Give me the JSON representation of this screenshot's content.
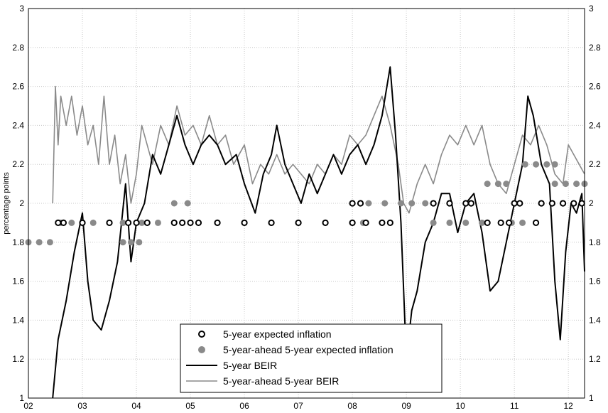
{
  "chart_data": {
    "type": "line",
    "title": "",
    "xlabel": "",
    "ylabel": "percentage points",
    "xlim": [
      2002.0,
      2012.3
    ],
    "ylim": [
      1.0,
      3.0
    ],
    "grid": true,
    "x_ticks": [
      "02",
      "03",
      "04",
      "05",
      "06",
      "07",
      "08",
      "09",
      "10",
      "11",
      "12"
    ],
    "y_ticks": [
      "1",
      "1.2",
      "1.4",
      "1.6",
      "1.8",
      "2",
      "2.2",
      "2.4",
      "2.6",
      "2.8",
      "3"
    ],
    "legend_position": "bottom-center",
    "colors": {
      "expected": "#000000",
      "ahead_expected": "#8a8a8a",
      "beir": "#000000",
      "ahead_beir": "#8a8a8a",
      "grid": "#c8c8c8"
    },
    "series": [
      {
        "name": "5-year expected inflation",
        "style": "markers",
        "points": [
          [
            2002.55,
            1.9
          ],
          [
            2002.65,
            1.9
          ],
          [
            2003.0,
            1.9
          ],
          [
            2003.5,
            1.9
          ],
          [
            2003.85,
            1.9
          ],
          [
            2004.0,
            1.9
          ],
          [
            2004.2,
            1.9
          ],
          [
            2004.7,
            1.9
          ],
          [
            2004.85,
            1.9
          ],
          [
            2005.0,
            1.9
          ],
          [
            2005.15,
            1.9
          ],
          [
            2005.5,
            1.9
          ],
          [
            2006.0,
            1.9
          ],
          [
            2006.5,
            1.9
          ],
          [
            2007.0,
            1.9
          ],
          [
            2007.5,
            1.9
          ],
          [
            2008.0,
            1.9
          ],
          [
            2008.25,
            1.9
          ],
          [
            2008.0,
            2.0
          ],
          [
            2008.15,
            2.0
          ],
          [
            2008.55,
            1.9
          ],
          [
            2008.7,
            1.9
          ],
          [
            2009.5,
            2.0
          ],
          [
            2009.8,
            2.0
          ],
          [
            2010.1,
            2.0
          ],
          [
            2010.2,
            2.0
          ],
          [
            2010.5,
            1.9
          ],
          [
            2010.75,
            1.9
          ],
          [
            2010.9,
            1.9
          ],
          [
            2011.0,
            2.0
          ],
          [
            2011.1,
            2.0
          ],
          [
            2011.4,
            1.9
          ],
          [
            2011.5,
            2.0
          ],
          [
            2011.7,
            2.0
          ],
          [
            2011.9,
            2.0
          ],
          [
            2012.1,
            2.0
          ],
          [
            2012.25,
            2.0
          ]
        ]
      },
      {
        "name": "5-year-ahead 5-year expected inflation",
        "style": "markers",
        "points": [
          [
            2002.0,
            1.8
          ],
          [
            2002.2,
            1.8
          ],
          [
            2002.4,
            1.8
          ],
          [
            2002.6,
            1.9
          ],
          [
            2002.8,
            1.9
          ],
          [
            2003.0,
            1.9
          ],
          [
            2003.2,
            1.9
          ],
          [
            2003.5,
            1.9
          ],
          [
            2003.75,
            1.9
          ],
          [
            2003.75,
            1.8
          ],
          [
            2003.9,
            1.8
          ],
          [
            2004.05,
            1.8
          ],
          [
            2004.1,
            1.9
          ],
          [
            2004.4,
            1.9
          ],
          [
            2004.7,
            1.9
          ],
          [
            2004.7,
            2.0
          ],
          [
            2004.95,
            2.0
          ],
          [
            2005.0,
            1.9
          ],
          [
            2005.5,
            1.9
          ],
          [
            2006.0,
            1.9
          ],
          [
            2006.5,
            1.9
          ],
          [
            2007.0,
            1.9
          ],
          [
            2007.5,
            1.9
          ],
          [
            2008.0,
            1.9
          ],
          [
            2008.2,
            1.9
          ],
          [
            2008.3,
            2.0
          ],
          [
            2008.6,
            2.0
          ],
          [
            2008.9,
            2.0
          ],
          [
            2009.1,
            2.0
          ],
          [
            2009.35,
            2.0
          ],
          [
            2009.5,
            1.9
          ],
          [
            2009.8,
            1.9
          ],
          [
            2010.1,
            1.9
          ],
          [
            2010.4,
            1.9
          ],
          [
            2010.5,
            2.1
          ],
          [
            2010.7,
            2.1
          ],
          [
            2010.85,
            2.1
          ],
          [
            2010.95,
            1.9
          ],
          [
            2011.15,
            1.9
          ],
          [
            2011.2,
            2.2
          ],
          [
            2011.4,
            2.2
          ],
          [
            2011.6,
            2.2
          ],
          [
            2011.75,
            2.2
          ],
          [
            2011.75,
            2.1
          ],
          [
            2011.95,
            2.1
          ],
          [
            2012.15,
            2.1
          ],
          [
            2012.3,
            2.1
          ]
        ]
      },
      {
        "name": "5-year BEIR",
        "style": "line",
        "points": [
          [
            2002.45,
            1.0
          ],
          [
            2002.55,
            1.3
          ],
          [
            2002.7,
            1.5
          ],
          [
            2002.85,
            1.75
          ],
          [
            2003.0,
            1.95
          ],
          [
            2003.1,
            1.6
          ],
          [
            2003.2,
            1.4
          ],
          [
            2003.35,
            1.35
          ],
          [
            2003.5,
            1.5
          ],
          [
            2003.65,
            1.7
          ],
          [
            2003.8,
            2.1
          ],
          [
            2003.9,
            1.7
          ],
          [
            2004.0,
            1.9
          ],
          [
            2004.15,
            2.0
          ],
          [
            2004.3,
            2.25
          ],
          [
            2004.45,
            2.15
          ],
          [
            2004.6,
            2.3
          ],
          [
            2004.75,
            2.45
          ],
          [
            2004.9,
            2.3
          ],
          [
            2005.05,
            2.2
          ],
          [
            2005.2,
            2.3
          ],
          [
            2005.35,
            2.35
          ],
          [
            2005.5,
            2.3
          ],
          [
            2005.65,
            2.2
          ],
          [
            2005.85,
            2.25
          ],
          [
            2006.0,
            2.1
          ],
          [
            2006.2,
            1.95
          ],
          [
            2006.35,
            2.15
          ],
          [
            2006.5,
            2.25
          ],
          [
            2006.6,
            2.4
          ],
          [
            2006.75,
            2.2
          ],
          [
            2006.9,
            2.1
          ],
          [
            2007.05,
            2.0
          ],
          [
            2007.2,
            2.15
          ],
          [
            2007.35,
            2.05
          ],
          [
            2007.5,
            2.15
          ],
          [
            2007.65,
            2.25
          ],
          [
            2007.8,
            2.15
          ],
          [
            2007.95,
            2.25
          ],
          [
            2008.1,
            2.3
          ],
          [
            2008.25,
            2.2
          ],
          [
            2008.4,
            2.3
          ],
          [
            2008.55,
            2.45
          ],
          [
            2008.7,
            2.7
          ],
          [
            2008.8,
            2.35
          ],
          [
            2008.9,
            1.9
          ],
          [
            2009.0,
            1.2
          ],
          [
            2009.1,
            1.45
          ],
          [
            2009.2,
            1.55
          ],
          [
            2009.35,
            1.8
          ],
          [
            2009.5,
            1.9
          ],
          [
            2009.65,
            2.05
          ],
          [
            2009.8,
            2.05
          ],
          [
            2009.95,
            1.85
          ],
          [
            2010.1,
            2.0
          ],
          [
            2010.25,
            2.05
          ],
          [
            2010.4,
            1.85
          ],
          [
            2010.55,
            1.55
          ],
          [
            2010.7,
            1.6
          ],
          [
            2010.85,
            1.8
          ],
          [
            2011.0,
            2.0
          ],
          [
            2011.15,
            2.2
          ],
          [
            2011.25,
            2.55
          ],
          [
            2011.35,
            2.45
          ],
          [
            2011.5,
            2.2
          ],
          [
            2011.65,
            2.1
          ],
          [
            2011.75,
            1.6
          ],
          [
            2011.85,
            1.3
          ],
          [
            2011.95,
            1.75
          ],
          [
            2012.05,
            2.0
          ],
          [
            2012.15,
            1.95
          ],
          [
            2012.25,
            2.05
          ],
          [
            2012.3,
            1.65
          ]
        ]
      },
      {
        "name": "5-year-ahead 5-year BEIR",
        "style": "line",
        "points": [
          [
            2002.45,
            2.0
          ],
          [
            2002.5,
            2.6
          ],
          [
            2002.55,
            2.3
          ],
          [
            2002.6,
            2.55
          ],
          [
            2002.7,
            2.4
          ],
          [
            2002.8,
            2.55
          ],
          [
            2002.9,
            2.35
          ],
          [
            2003.0,
            2.5
          ],
          [
            2003.1,
            2.3
          ],
          [
            2003.2,
            2.4
          ],
          [
            2003.3,
            2.2
          ],
          [
            2003.4,
            2.55
          ],
          [
            2003.5,
            2.2
          ],
          [
            2003.6,
            2.35
          ],
          [
            2003.7,
            2.1
          ],
          [
            2003.8,
            2.25
          ],
          [
            2003.9,
            2.0
          ],
          [
            2004.0,
            2.15
          ],
          [
            2004.1,
            2.4
          ],
          [
            2004.2,
            2.3
          ],
          [
            2004.3,
            2.2
          ],
          [
            2004.45,
            2.4
          ],
          [
            2004.6,
            2.3
          ],
          [
            2004.75,
            2.5
          ],
          [
            2004.9,
            2.35
          ],
          [
            2005.05,
            2.4
          ],
          [
            2005.2,
            2.3
          ],
          [
            2005.35,
            2.45
          ],
          [
            2005.5,
            2.3
          ],
          [
            2005.65,
            2.35
          ],
          [
            2005.8,
            2.2
          ],
          [
            2006.0,
            2.3
          ],
          [
            2006.15,
            2.1
          ],
          [
            2006.3,
            2.2
          ],
          [
            2006.45,
            2.15
          ],
          [
            2006.6,
            2.25
          ],
          [
            2006.75,
            2.15
          ],
          [
            2006.9,
            2.2
          ],
          [
            2007.05,
            2.15
          ],
          [
            2007.2,
            2.1
          ],
          [
            2007.35,
            2.2
          ],
          [
            2007.5,
            2.15
          ],
          [
            2007.65,
            2.25
          ],
          [
            2007.8,
            2.2
          ],
          [
            2007.95,
            2.35
          ],
          [
            2008.1,
            2.3
          ],
          [
            2008.25,
            2.35
          ],
          [
            2008.4,
            2.45
          ],
          [
            2008.55,
            2.55
          ],
          [
            2008.7,
            2.4
          ],
          [
            2008.85,
            2.2
          ],
          [
            2008.95,
            2.0
          ],
          [
            2009.05,
            1.95
          ],
          [
            2009.2,
            2.1
          ],
          [
            2009.35,
            2.2
          ],
          [
            2009.5,
            2.1
          ],
          [
            2009.65,
            2.25
          ],
          [
            2009.8,
            2.35
          ],
          [
            2009.95,
            2.3
          ],
          [
            2010.1,
            2.4
          ],
          [
            2010.25,
            2.3
          ],
          [
            2010.4,
            2.4
          ],
          [
            2010.55,
            2.2
          ],
          [
            2010.7,
            2.1
          ],
          [
            2010.85,
            2.05
          ],
          [
            2011.0,
            2.2
          ],
          [
            2011.15,
            2.35
          ],
          [
            2011.3,
            2.3
          ],
          [
            2011.45,
            2.4
          ],
          [
            2011.6,
            2.3
          ],
          [
            2011.75,
            2.15
          ],
          [
            2011.9,
            2.1
          ],
          [
            2012.0,
            2.3
          ],
          [
            2012.1,
            2.25
          ],
          [
            2012.2,
            2.2
          ],
          [
            2012.3,
            2.15
          ]
        ]
      }
    ]
  }
}
